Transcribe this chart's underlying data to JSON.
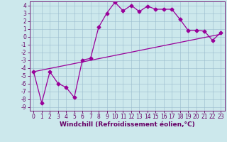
{
  "title": "",
  "xlabel": "Windchill (Refroidissement éolien,°C)",
  "ylabel": "",
  "bg_color": "#cce8ec",
  "line_color": "#990099",
  "grid_color": "#99bbcc",
  "xlim": [
    -0.5,
    23.5
  ],
  "ylim": [
    -9.5,
    4.5
  ],
  "xticks": [
    0,
    1,
    2,
    3,
    4,
    5,
    6,
    7,
    8,
    9,
    10,
    11,
    12,
    13,
    14,
    15,
    16,
    17,
    18,
    19,
    20,
    21,
    22,
    23
  ],
  "yticks": [
    4,
    3,
    2,
    1,
    0,
    -1,
    -2,
    -3,
    -4,
    -5,
    -6,
    -7,
    -8,
    -9
  ],
  "curve_x": [
    0,
    1,
    2,
    3,
    4,
    5,
    6,
    7,
    8,
    9,
    10,
    11,
    12,
    13,
    14,
    15,
    16,
    17,
    18,
    19,
    20,
    21,
    22,
    23
  ],
  "curve_y": [
    -4.5,
    -8.5,
    -4.5,
    -6.0,
    -6.5,
    -7.8,
    -3.0,
    -2.8,
    1.2,
    3.0,
    4.4,
    3.3,
    4.0,
    3.2,
    3.9,
    3.5,
    3.5,
    3.5,
    2.2,
    0.8,
    0.8,
    0.7,
    -0.5,
    0.5
  ],
  "line2_x": [
    0,
    23
  ],
  "line2_y": [
    -4.5,
    0.3
  ],
  "marker": "D",
  "marker_size": 2.5,
  "line_width": 0.9,
  "xlabel_fontsize": 6.5,
  "tick_fontsize": 5.5,
  "text_color": "#660066"
}
